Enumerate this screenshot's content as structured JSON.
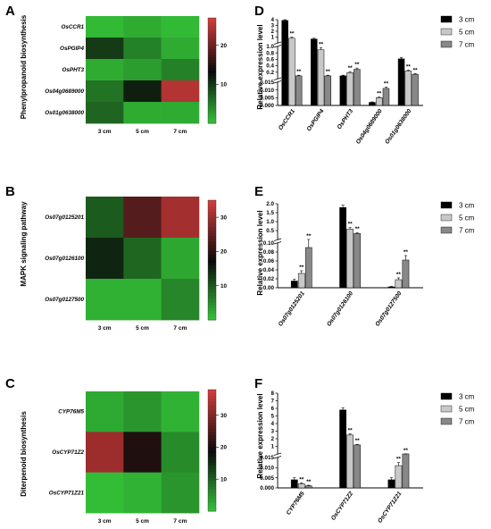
{
  "colors": {
    "heat_low": "#35c739",
    "heat_mid": "#0a0a0a",
    "heat_high": "#d23a3a",
    "bar_3cm": "#000000",
    "bar_5cm": "#c8c8c8",
    "bar_7cm": "#888888"
  },
  "legend_labels": [
    "3 cm",
    "5 cm",
    "7 cm"
  ],
  "panels": {
    "A": {
      "letter": "A",
      "ylabel": "Phenylpropanoid biosynthesis"
    },
    "B": {
      "letter": "B",
      "ylabel": "MAPK signaling pathway"
    },
    "C": {
      "letter": "C",
      "ylabel": "Diterpenoid biosynthesis"
    },
    "D": {
      "letter": "D",
      "ylabel": "Relative expression level"
    },
    "E": {
      "letter": "E",
      "ylabel": "Relative expression level"
    },
    "F": {
      "letter": "F",
      "ylabel": "Relative expression level"
    }
  },
  "chart_data": [
    {
      "panel": "A",
      "type": "heatmap",
      "rows": [
        "OsCCR1",
        "OsPGIP4",
        "OsPHT3",
        "Os04g0689000",
        "Os01g0638000"
      ],
      "columns": [
        "3 cm",
        "5 cm",
        "7 cm"
      ],
      "values": [
        [
          1,
          2,
          1
        ],
        [
          10,
          5,
          2
        ],
        [
          2,
          3,
          5
        ],
        [
          6,
          12,
          25
        ],
        [
          7,
          2,
          2
        ]
      ],
      "colorbar_ticks": [
        10,
        20
      ],
      "colorbar_range": [
        0,
        27
      ]
    },
    {
      "panel": "B",
      "type": "heatmap",
      "rows": [
        "Os07g0125201",
        "Os07g0126100",
        "Os07g0127500"
      ],
      "columns": [
        "3 cm",
        "5 cm",
        "7 cm"
      ],
      "values": [
        [
          10,
          24,
          31
        ],
        [
          15,
          9,
          3
        ],
        [
          2,
          2,
          6
        ]
      ],
      "colorbar_ticks": [
        10,
        20,
        30
      ],
      "colorbar_range": [
        0,
        35
      ]
    },
    {
      "panel": "C",
      "type": "heatmap",
      "rows": [
        "CYP76M5",
        "OsCYP71Z2",
        "OsCYP71Z21"
      ],
      "columns": [
        "3 cm",
        "5 cm",
        "7 cm"
      ],
      "values": [
        [
          3,
          5,
          2
        ],
        [
          33,
          21,
          6
        ],
        [
          1,
          2,
          5
        ]
      ],
      "colorbar_ticks": [
        10,
        20,
        30
      ],
      "colorbar_range": [
        0,
        38
      ]
    },
    {
      "panel": "D",
      "type": "bar",
      "categories": [
        "OsCCR1",
        "OsPGIP4",
        "OsPHT3",
        "Os04g0689000",
        "Os01g0638000"
      ],
      "series": [
        {
          "name": "3 cm",
          "values": [
            3.9,
            1.5,
            0.1,
            0.002,
            0.62
          ]
        },
        {
          "name": "5 cm",
          "values": [
            1.6,
            0.9,
            0.2,
            0.005,
            0.25
          ]
        },
        {
          "name": "7 cm",
          "values": [
            0.1,
            0.1,
            0.3,
            0.011,
            0.15
          ]
        }
      ],
      "errors": [
        [
          0.3,
          0.1,
          0.02,
          0.0003,
          0.04
        ],
        [
          0.15,
          0.06,
          0.03,
          0.0005,
          0.03
        ],
        [
          0.02,
          0.02,
          0.04,
          0.0008,
          0.02
        ]
      ],
      "significance": [
        [
          "",
          "**",
          "**"
        ],
        [
          "",
          "**",
          "**"
        ],
        [
          "",
          "**",
          "**"
        ],
        [
          "",
          "**",
          "**"
        ],
        [
          "",
          "**",
          "**"
        ]
      ],
      "y_segments": [
        {
          "lo": 0.0,
          "hi": 0.015,
          "ticks": [
            "0.000",
            "0.005",
            "0.010",
            "0.015"
          ]
        },
        {
          "lo": 0.015,
          "hi": 1.0,
          "ticks": [
            "0.2",
            "0.4",
            "0.6",
            "0.8",
            "1.0"
          ]
        },
        {
          "lo": 1.0,
          "hi": 4.0,
          "ticks": [
            "1",
            "2",
            "3",
            "4"
          ]
        }
      ],
      "ylabel": "Relative expression level"
    },
    {
      "panel": "E",
      "type": "bar",
      "categories": [
        "Os07g0125201",
        "Os07g0126100",
        "Os07g0127500"
      ],
      "series": [
        {
          "name": "3 cm",
          "values": [
            0.015,
            1.8,
            0.002
          ]
        },
        {
          "name": "5 cm",
          "values": [
            0.032,
            0.65,
            0.018
          ]
        },
        {
          "name": "7 cm",
          "values": [
            0.09,
            0.42,
            0.062
          ]
        }
      ],
      "errors": [
        [
          0.004,
          0.12,
          0.001
        ],
        [
          0.006,
          0.08,
          0.004
        ],
        [
          0.012,
          0.05,
          0.01
        ]
      ],
      "significance": [
        [
          "",
          "**",
          "**"
        ],
        [
          "",
          "**",
          "**"
        ],
        [
          "",
          "**",
          "**"
        ]
      ],
      "y_segments": [
        {
          "lo": 0.0,
          "hi": 0.1,
          "ticks": [
            "0.00",
            "0.02",
            "0.04",
            "0.06",
            "0.08",
            "0.10"
          ]
        },
        {
          "lo": 0.1,
          "hi": 2.0,
          "ticks": [
            "0.5",
            "1.0",
            "1.5",
            "2.0"
          ]
        }
      ],
      "ylabel": "Relative expression level"
    },
    {
      "panel": "F",
      "type": "bar",
      "categories": [
        "CYP76M5",
        "OsCYP71Z2",
        "OsCYP71Z21"
      ],
      "series": [
        {
          "name": "3 cm",
          "values": [
            0.004,
            5.8,
            0.004
          ]
        },
        {
          "name": "5 cm",
          "values": [
            0.002,
            2.5,
            0.011
          ]
        },
        {
          "name": "7 cm",
          "values": [
            0.001,
            1.2,
            0.018
          ]
        }
      ],
      "errors": [
        [
          0.001,
          0.3,
          0.001
        ],
        [
          0.0005,
          0.15,
          0.0015
        ],
        [
          0.0003,
          0.08,
          0.002
        ]
      ],
      "significance": [
        [
          "",
          "**",
          "**"
        ],
        [
          "",
          "**",
          "**"
        ],
        [
          "",
          "**",
          "**"
        ]
      ],
      "y_segments": [
        {
          "lo": 0.0,
          "hi": 0.015,
          "ticks": [
            "0.000",
            "0.005",
            "0.010",
            "0.015"
          ]
        },
        {
          "lo": 0.015,
          "hi": 8.0,
          "ticks": [
            "1",
            "2",
            "3",
            "4",
            "5",
            "6",
            "7",
            "8"
          ]
        }
      ],
      "ylabel": "Relative expression level"
    }
  ]
}
